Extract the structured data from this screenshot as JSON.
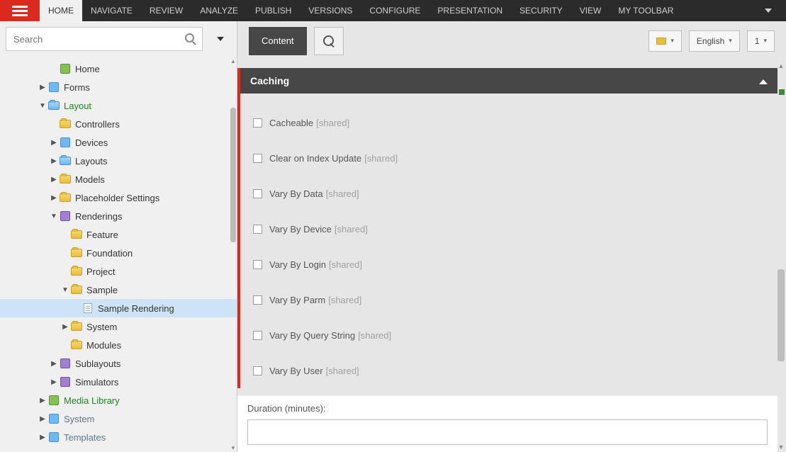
{
  "topnav": {
    "items": [
      "HOME",
      "NAVIGATE",
      "REVIEW",
      "ANALYZE",
      "PUBLISH",
      "VERSIONS",
      "CONFIGURE",
      "PRESENTATION",
      "SECURITY",
      "VIEW",
      "MY TOOLBAR"
    ],
    "active_index": 0
  },
  "search": {
    "placeholder": "Search"
  },
  "toolbar": {
    "content_label": "Content",
    "lang_label": "English",
    "version_label": "1"
  },
  "panel": {
    "title": "Caching",
    "fields": [
      {
        "label": "Cacheable",
        "shared": "[shared]"
      },
      {
        "label": "Clear on Index Update",
        "shared": "[shared]"
      },
      {
        "label": "Vary By Data",
        "shared": "[shared]"
      },
      {
        "label": "Vary By Device",
        "shared": "[shared]"
      },
      {
        "label": "Vary By Login",
        "shared": "[shared]"
      },
      {
        "label": "Vary By Parm",
        "shared": "[shared]"
      },
      {
        "label": "Vary By Query String",
        "shared": "[shared]"
      },
      {
        "label": "Vary By User",
        "shared": "[shared]"
      }
    ],
    "duration_label": "Duration (minutes):",
    "duration_value": ""
  },
  "tree": [
    {
      "indent": 70,
      "expander": "",
      "icon": "generic",
      "label": "Home",
      "cls": ""
    },
    {
      "indent": 54,
      "expander": "right",
      "icon": "blue",
      "label": "Forms",
      "cls": ""
    },
    {
      "indent": 54,
      "expander": "down",
      "icon": "folder-blue",
      "label": "Layout",
      "cls": "green"
    },
    {
      "indent": 70,
      "expander": "",
      "icon": "folder",
      "label": "Controllers",
      "cls": ""
    },
    {
      "indent": 70,
      "expander": "right",
      "icon": "blue",
      "label": "Devices",
      "cls": ""
    },
    {
      "indent": 70,
      "expander": "right",
      "icon": "folder-blue",
      "label": "Layouts",
      "cls": ""
    },
    {
      "indent": 70,
      "expander": "right",
      "icon": "folder",
      "label": "Models",
      "cls": ""
    },
    {
      "indent": 70,
      "expander": "right",
      "icon": "folder",
      "label": "Placeholder Settings",
      "cls": ""
    },
    {
      "indent": 70,
      "expander": "down",
      "icon": "purple",
      "label": "Renderings",
      "cls": ""
    },
    {
      "indent": 86,
      "expander": "",
      "icon": "folder",
      "label": "Feature",
      "cls": ""
    },
    {
      "indent": 86,
      "expander": "",
      "icon": "folder",
      "label": "Foundation",
      "cls": ""
    },
    {
      "indent": 86,
      "expander": "",
      "icon": "folder",
      "label": "Project",
      "cls": ""
    },
    {
      "indent": 86,
      "expander": "down",
      "icon": "folder",
      "label": "Sample",
      "cls": ""
    },
    {
      "indent": 102,
      "expander": "",
      "icon": "doc",
      "label": "Sample Rendering",
      "cls": "",
      "selected": true
    },
    {
      "indent": 86,
      "expander": "right",
      "icon": "folder",
      "label": "System",
      "cls": ""
    },
    {
      "indent": 86,
      "expander": "",
      "icon": "folder",
      "label": "Modules",
      "cls": ""
    },
    {
      "indent": 70,
      "expander": "right",
      "icon": "purple",
      "label": "Sublayouts",
      "cls": ""
    },
    {
      "indent": 70,
      "expander": "right",
      "icon": "purple",
      "label": "Simulators",
      "cls": ""
    },
    {
      "indent": 54,
      "expander": "right",
      "icon": "generic",
      "label": "Media Library",
      "cls": "green"
    },
    {
      "indent": 54,
      "expander": "right",
      "icon": "blue",
      "label": "System",
      "cls": "bluegray"
    },
    {
      "indent": 54,
      "expander": "right",
      "icon": "blue",
      "label": "Templates",
      "cls": "bluegray"
    }
  ]
}
